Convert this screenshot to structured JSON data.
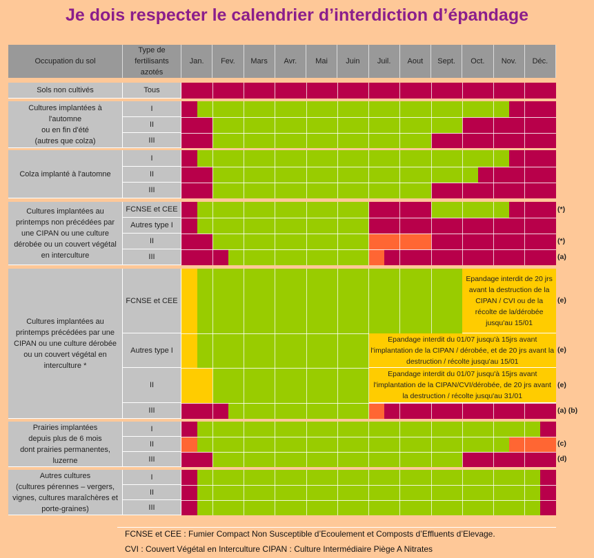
{
  "title": "Je dois respecter le calendrier d’interdiction d’épandage",
  "colors": {
    "R": "#b8004a",
    "G": "#99cc00",
    "O": "#ff6633",
    "Y": "#ffcc00"
  },
  "chart_data": {
    "type": "table",
    "header": {
      "occupation": "Occupation du sol",
      "type": "Type de fertilisants azotés",
      "months": [
        "Jan.",
        "Fev.",
        "Mars",
        "Avr.",
        "Mai",
        "Juin",
        "Juil.",
        "Aout",
        "Sept.",
        "Oct.",
        "Nov.",
        "Déc."
      ]
    },
    "groups": [
      {
        "label": "Sols non cultivés",
        "rows": [
          {
            "type": "Tous",
            "segments": [
              [
                0,
                12,
                "R"
              ]
            ],
            "note": ""
          }
        ]
      },
      {
        "label": "Cultures implantées à l'automne\nou en fin d'été\n(autres que colza)",
        "rows": [
          {
            "type": "I",
            "segments": [
              [
                0,
                0.5,
                "R"
              ],
              [
                0.5,
                10.5,
                "G"
              ],
              [
                10.5,
                12,
                "R"
              ]
            ],
            "note": ""
          },
          {
            "type": "II",
            "segments": [
              [
                0,
                1,
                "R"
              ],
              [
                1,
                9,
                "G"
              ],
              [
                9,
                12,
                "R"
              ]
            ],
            "note": ""
          },
          {
            "type": "III",
            "segments": [
              [
                0,
                1,
                "R"
              ],
              [
                1,
                8,
                "G"
              ],
              [
                8,
                12,
                "R"
              ]
            ],
            "note": ""
          }
        ]
      },
      {
        "label": "Colza implanté à l'automne",
        "rows": [
          {
            "type": "I",
            "segments": [
              [
                0,
                0.5,
                "R"
              ],
              [
                0.5,
                10.5,
                "G"
              ],
              [
                10.5,
                12,
                "R"
              ]
            ],
            "note": ""
          },
          {
            "type": "II",
            "segments": [
              [
                0,
                1,
                "R"
              ],
              [
                1,
                9.5,
                "G"
              ],
              [
                9.5,
                12,
                "R"
              ]
            ],
            "note": ""
          },
          {
            "type": "III",
            "segments": [
              [
                0,
                1,
                "R"
              ],
              [
                1,
                8,
                "G"
              ],
              [
                8,
                12,
                "R"
              ]
            ],
            "note": ""
          }
        ]
      },
      {
        "label": "Cultures implantées au printemps non précédées par une CIPAN ou une culture dérobée ou un couvert végétal en interculture",
        "rows": [
          {
            "type": "FCNSE et CEE",
            "segments": [
              [
                0,
                0.5,
                "R"
              ],
              [
                0.5,
                6,
                "G"
              ],
              [
                6,
                8,
                "R"
              ],
              [
                8,
                10.5,
                "G"
              ],
              [
                10.5,
                12,
                "R"
              ]
            ],
            "note": "(*)"
          },
          {
            "type": "Autres type I",
            "segments": [
              [
                0,
                0.5,
                "R"
              ],
              [
                0.5,
                6,
                "G"
              ],
              [
                6,
                12,
                "R"
              ]
            ],
            "note": ""
          },
          {
            "type": "II",
            "segments": [
              [
                0,
                1,
                "R"
              ],
              [
                1,
                6,
                "G"
              ],
              [
                6,
                8,
                "O"
              ],
              [
                8,
                12,
                "R"
              ]
            ],
            "note": "(*)"
          },
          {
            "type": "III",
            "segments": [
              [
                0,
                1.5,
                "R"
              ],
              [
                1.5,
                6,
                "G"
              ],
              [
                6,
                6.5,
                "O"
              ],
              [
                6.5,
                12,
                "R"
              ]
            ],
            "note": "(a)"
          }
        ]
      },
      {
        "label": "Cultures implantées au printemps précédées par une CIPAN ou une culture dérobée ou un couvert végétal en interculture *",
        "rows": [
          {
            "type": "FCNSE et CEE",
            "segments": [
              [
                0,
                0.5,
                "Y"
              ],
              [
                0.5,
                9,
                "G"
              ]
            ],
            "note": "(e)",
            "annotation": {
              "from": 9,
              "to": 12,
              "text": "Epandage interdit de 20 jrs avant la destruction de la CIPAN / CVI  ou de la récolte de la/dérobée jusqu'au 15/01"
            }
          },
          {
            "type": "Autres type I",
            "segments": [
              [
                0,
                0.5,
                "Y"
              ],
              [
                0.5,
                6,
                "G"
              ]
            ],
            "note": "(e)",
            "annotation": {
              "from": 6,
              "to": 12,
              "text": "Epandage interdit du 01/07 jusqu'à 15jrs avant l'implantation de la CIPAN / dérobée, et de 20 jrs avant la destruction / récolte jusqu'au 15/01"
            }
          },
          {
            "type": "II",
            "segments": [
              [
                0,
                1,
                "Y"
              ],
              [
                1,
                6,
                "G"
              ]
            ],
            "note": "(e)",
            "annotation": {
              "from": 6,
              "to": 12,
              "text": "Epandage interdit du 01/07 jusqu'à 15jrs avant l'implantation de la CIPAN/CVI/dérobée,  de 20 jrs avant la destruction / récolte jusqu'au 31/01"
            }
          },
          {
            "type": "III",
            "segments": [
              [
                0,
                1.5,
                "R"
              ],
              [
                1.5,
                6,
                "G"
              ],
              [
                6,
                6.5,
                "O"
              ],
              [
                6.5,
                12,
                "R"
              ]
            ],
            "note": "(a) (b)"
          }
        ]
      },
      {
        "label": "Prairies implantées\ndepuis plus de 6 mois\ndont prairies permanentes,\nluzerne",
        "rows": [
          {
            "type": "I",
            "segments": [
              [
                0,
                0.5,
                "R"
              ],
              [
                0.5,
                11.5,
                "G"
              ],
              [
                11.5,
                12,
                "R"
              ]
            ],
            "note": ""
          },
          {
            "type": "II",
            "segments": [
              [
                0,
                0.5,
                "O"
              ],
              [
                0.5,
                10.5,
                "G"
              ],
              [
                10.5,
                12,
                "O"
              ]
            ],
            "note": "(c)"
          },
          {
            "type": "III",
            "segments": [
              [
                0,
                1,
                "R"
              ],
              [
                1,
                9,
                "G"
              ],
              [
                9,
                12,
                "R"
              ]
            ],
            "note": "(d)"
          }
        ]
      },
      {
        "label": "Autres cultures\n(cultures pérennes – vergers,\nvignes, cultures maraîchères et\nporte-graines)",
        "rows": [
          {
            "type": "I",
            "segments": [
              [
                0,
                0.5,
                "R"
              ],
              [
                0.5,
                11.5,
                "G"
              ],
              [
                11.5,
                12,
                "R"
              ]
            ],
            "note": ""
          },
          {
            "type": "II",
            "segments": [
              [
                0,
                0.5,
                "R"
              ],
              [
                0.5,
                11.5,
                "G"
              ],
              [
                11.5,
                12,
                "R"
              ]
            ],
            "note": ""
          },
          {
            "type": "III",
            "segments": [
              [
                0,
                0.5,
                "R"
              ],
              [
                0.5,
                11.5,
                "G"
              ],
              [
                11.5,
                12,
                "R"
              ]
            ],
            "note": ""
          }
        ]
      }
    ]
  },
  "footer": {
    "line1": "FCNSE et CEE : Fumier Compact Non Susceptible d’Ecoulement et Composts d’Effluents d’Elevage.",
    "line2": "CVI : Couvert Végétal en Interculture  CIPAN : Culture Intermédiaire Piège A Nitrates"
  }
}
